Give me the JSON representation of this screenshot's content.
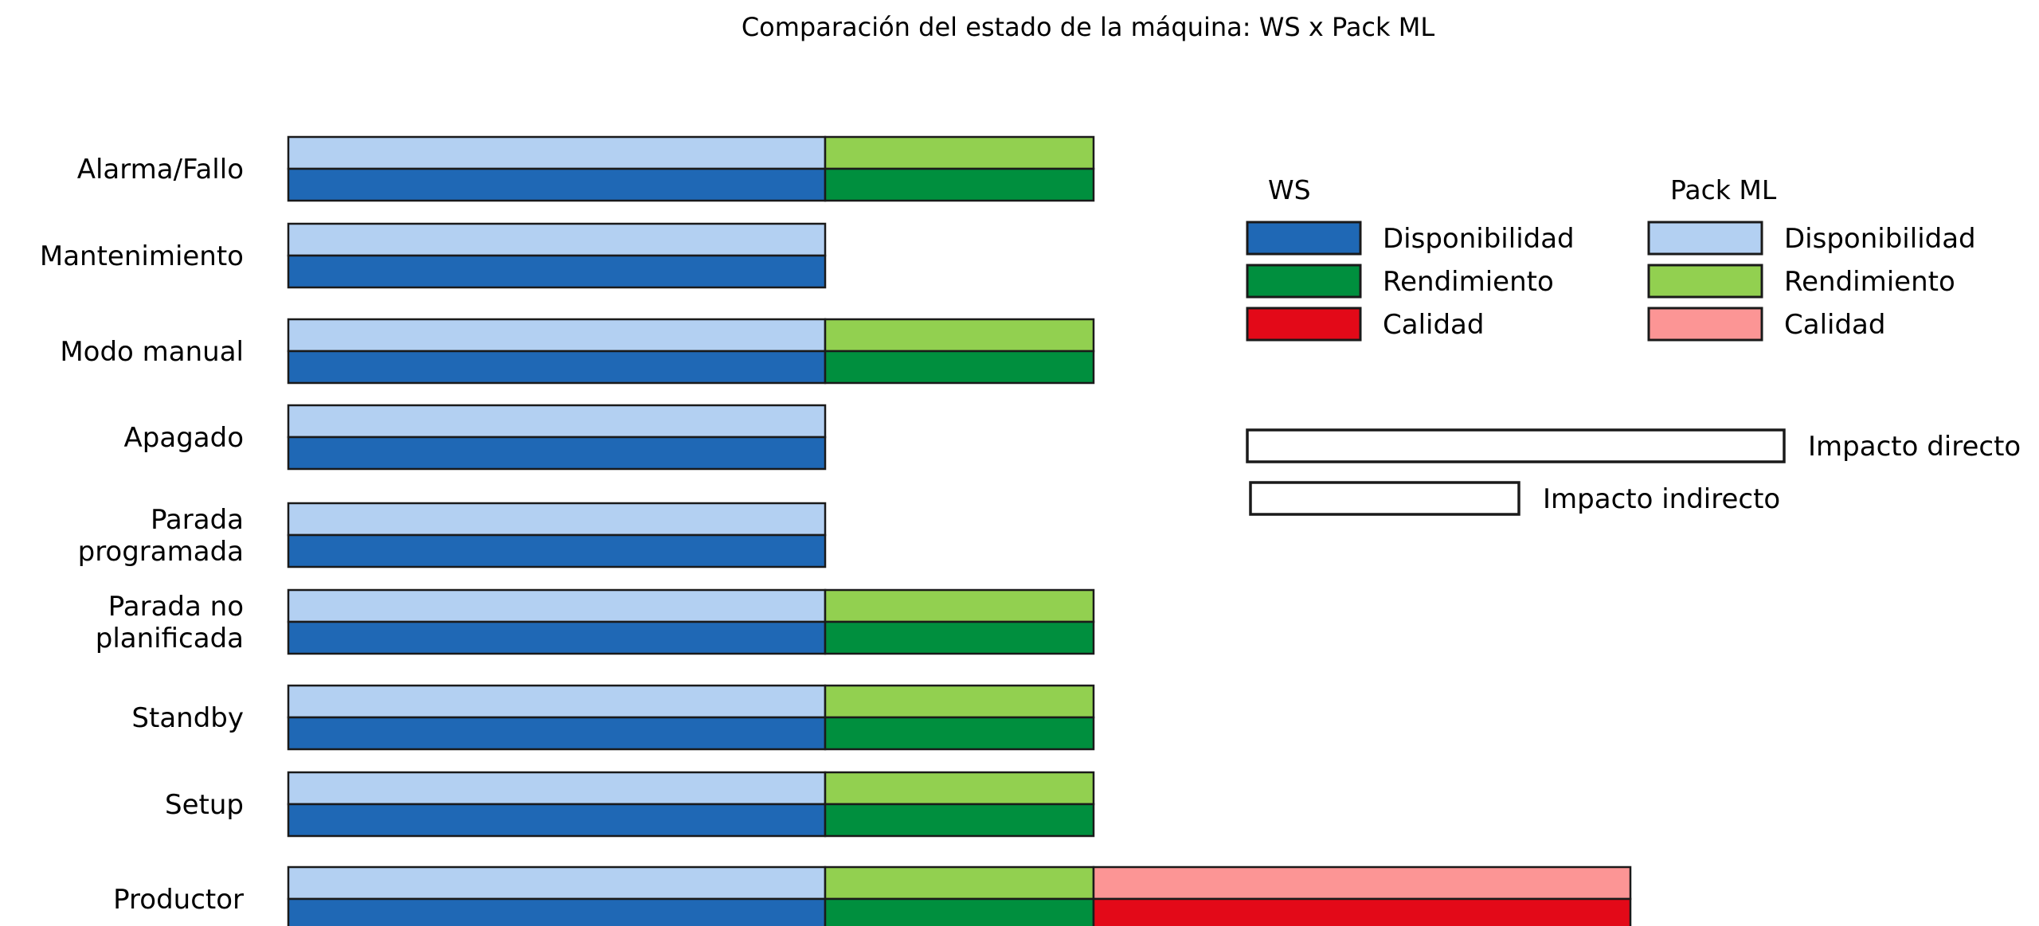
{
  "chart_data": {
    "type": "bar",
    "title": "Comparación del estado de la máquina: WS x Pack ML",
    "categories": [
      [
        "Alarma/Fallo"
      ],
      [
        "Mantenimiento"
      ],
      [
        "Modo manual"
      ],
      [
        "Apagado"
      ],
      [
        "Parada",
        "programada"
      ],
      [
        "Parada no",
        "planificada"
      ],
      [
        "Standby"
      ],
      [
        "Setup"
      ],
      [
        "Productor"
      ]
    ],
    "stacked": true,
    "segments": [
      "Disponibilidad",
      "Rendimiento",
      "Calidad"
    ],
    "series": [
      {
        "name": "Pack ML",
        "Disponibilidad": [
          1,
          1,
          1,
          1,
          1,
          1,
          1,
          1,
          1
        ],
        "Rendimiento": [
          0.5,
          0,
          0.5,
          0,
          0,
          0.5,
          0.5,
          0.5,
          0.5
        ],
        "Calidad": [
          0,
          0,
          0,
          0,
          0,
          0,
          0,
          0,
          1
        ]
      },
      {
        "name": "WS",
        "Disponibilidad": [
          1,
          1,
          1,
          1,
          1,
          1,
          1,
          1,
          1
        ],
        "Rendimiento": [
          0.5,
          0,
          0.5,
          0,
          0,
          0.5,
          0.5,
          0.5,
          0.5
        ],
        "Calidad": [
          0,
          0,
          0,
          0,
          0,
          0,
          0,
          0,
          1
        ]
      }
    ],
    "colors": {
      "WS": {
        "Disponibilidad": "#1f68b5",
        "Rendimiento": "#008f3e",
        "Calidad": "#e30918"
      },
      "Pack ML": {
        "Disponibilidad": "#b3d0f2",
        "Rendimiento": "#92d050",
        "Calidad": "#fc9595"
      }
    },
    "legend": {
      "position": "right",
      "groups": [
        {
          "title": "WS",
          "items": [
            "Disponibilidad",
            "Rendimiento",
            "Calidad"
          ]
        },
        {
          "title": "Pack ML",
          "items": [
            "Disponibilidad",
            "Rendimiento",
            "Calidad"
          ]
        }
      ],
      "impact": [
        {
          "label": "Impacto directo",
          "value": 1
        },
        {
          "label": "Impacto indirecto",
          "value": 0.5
        }
      ]
    },
    "grid": false
  }
}
